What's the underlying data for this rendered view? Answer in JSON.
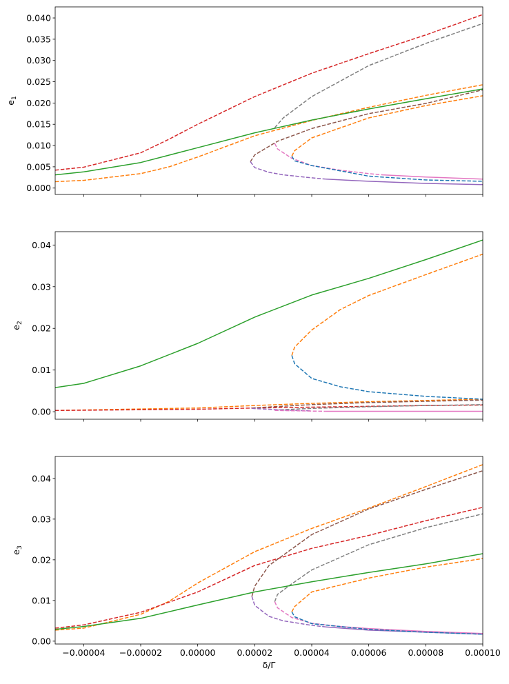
{
  "chart_data": [
    {
      "type": "line",
      "ylabel": "e",
      "ylabel_sub": "1",
      "xlim": [
        -5e-05,
        0.0001
      ],
      "ylim": [
        -0.0015,
        0.0426
      ],
      "yticks": [
        "0.000",
        "0.005",
        "0.010",
        "0.015",
        "0.020",
        "0.025",
        "0.030",
        "0.035",
        "0.040"
      ],
      "ytick_values": [
        0,
        0.005,
        0.01,
        0.015,
        0.02,
        0.025,
        0.03,
        0.035,
        0.04
      ],
      "series": [
        {
          "color": "#d62728",
          "style": "dashed",
          "x": [
            -5e-05,
            -4e-05,
            -2e-05,
            -1e-05,
            0,
            2e-05,
            4e-05,
            6e-05,
            8e-05,
            0.0001
          ],
          "y": [
            0.0042,
            0.0049,
            0.0083,
            0.0115,
            0.015,
            0.0215,
            0.027,
            0.0316,
            0.036,
            0.0408
          ]
        },
        {
          "color": "#ff7f0e",
          "style": "dashed",
          "x": [
            -5e-05,
            -4e-05,
            -2e-05,
            -1e-05,
            0,
            2e-05,
            4e-05,
            6e-05,
            8e-05,
            0.0001
          ],
          "y": [
            0.0015,
            0.0018,
            0.0034,
            0.005,
            0.0073,
            0.0123,
            0.0159,
            0.019,
            0.0218,
            0.0243
          ]
        },
        {
          "color": "#7f7f7f",
          "style": "dashed",
          "x": [
            2.7e-05,
            3e-05,
            4e-05,
            6e-05,
            8e-05,
            0.0001
          ],
          "y": [
            0.0142,
            0.0165,
            0.0215,
            0.0288,
            0.034,
            0.0387
          ]
        },
        {
          "color": "#8c564b",
          "style": "dashed",
          "x": [
            1.85e-05,
            2e-05,
            2.8e-05,
            4e-05,
            6e-05,
            8e-05,
            0.0001
          ],
          "y": [
            0.0062,
            0.0078,
            0.011,
            0.014,
            0.0175,
            0.0199,
            0.0231
          ]
        },
        {
          "color": "#9467bd",
          "style": "dashed",
          "x": [
            1.85e-05,
            2e-05,
            2.5e-05,
            3e-05,
            4e-05,
            4.5e-05
          ],
          "y": [
            0.0062,
            0.0048,
            0.0037,
            0.0031,
            0.0024,
            0.0021
          ]
        },
        {
          "color": "#9467bd",
          "style": "solid",
          "x": [
            4.5e-05,
            6e-05,
            8e-05,
            0.0001
          ],
          "y": [
            0.0021,
            0.0016,
            0.0011,
            0.0008
          ]
        },
        {
          "color": "#e377c2",
          "style": "dashed",
          "x": [
            2.7e-05,
            2.8e-05,
            3.3e-05,
            4e-05,
            5e-05,
            6e-05,
            6.5e-05
          ],
          "y": [
            0.0105,
            0.0092,
            0.007,
            0.0053,
            0.0042,
            0.0034,
            0.0031
          ]
        },
        {
          "color": "#e377c2",
          "style": "solid",
          "x": [
            6.5e-05,
            8e-05,
            0.0001
          ],
          "y": [
            0.0031,
            0.0026,
            0.0021
          ]
        },
        {
          "color": "#ff7f0e",
          "style": "dashed",
          "x": [
            3.3e-05,
            3.4e-05,
            4e-05,
            6e-05,
            8e-05,
            0.0001
          ],
          "y": [
            0.0075,
            0.0088,
            0.0118,
            0.0165,
            0.0194,
            0.0217
          ]
        },
        {
          "color": "#1f77b4",
          "style": "dashed",
          "x": [
            3.3e-05,
            3.4e-05,
            4e-05,
            6e-05,
            8e-05,
            0.0001
          ],
          "y": [
            0.0075,
            0.0064,
            0.0053,
            0.0028,
            0.0019,
            0.0016
          ]
        },
        {
          "color": "#2ca02c",
          "style": "solid",
          "x": [
            -5e-05,
            -4e-05,
            -2e-05,
            0,
            2e-05,
            4e-05,
            6e-05,
            8e-05,
            0.0001
          ],
          "y": [
            0.0031,
            0.0038,
            0.006,
            0.0095,
            0.013,
            0.016,
            0.0186,
            0.021,
            0.0233
          ]
        }
      ]
    },
    {
      "type": "line",
      "ylabel": "e",
      "ylabel_sub": "2",
      "xlim": [
        -5e-05,
        0.0001
      ],
      "ylim": [
        -0.0018,
        0.0432
      ],
      "yticks": [
        "0.00",
        "0.01",
        "0.02",
        "0.03",
        "0.04"
      ],
      "ytick_values": [
        0,
        0.01,
        0.02,
        0.03,
        0.04
      ],
      "series": [
        {
          "color": "#ff7f0e",
          "style": "dashed",
          "x": [
            -5e-05,
            0,
            2e-05,
            4e-05,
            6e-05,
            8e-05,
            0.0001
          ],
          "y": [
            0.0003,
            0.0009,
            0.0015,
            0.002,
            0.0024,
            0.0027,
            0.003
          ]
        },
        {
          "color": "#d62728",
          "style": "dashed",
          "x": [
            -5e-05,
            0,
            2e-05,
            4e-05,
            6e-05,
            8e-05,
            0.0001
          ],
          "y": [
            0.0003,
            0.0006,
            0.0009,
            0.0011,
            0.0013,
            0.0015,
            0.0016
          ]
        },
        {
          "color": "#8c564b",
          "style": "dashed",
          "x": [
            1.9e-05,
            4e-05,
            6e-05,
            8e-05,
            0.0001
          ],
          "y": [
            0.0009,
            0.0017,
            0.0022,
            0.0025,
            0.0028
          ]
        },
        {
          "color": "#7f7f7f",
          "style": "dashed",
          "x": [
            2.7e-05,
            4e-05,
            6e-05,
            8e-05,
            0.0001
          ],
          "y": [
            0.0004,
            0.0008,
            0.0012,
            0.0015,
            0.0017
          ]
        },
        {
          "color": "#9467bd",
          "style": "dashed",
          "x": [
            1.9e-05,
            3e-05,
            4e-05
          ],
          "y": [
            0.0008,
            0.0004,
            0.0002
          ]
        },
        {
          "color": "#e377c2",
          "style": "dashed",
          "x": [
            2.7e-05,
            4.5e-05
          ],
          "y": [
            0.0003,
            0.0001
          ]
        },
        {
          "color": "#e377c2",
          "style": "solid",
          "x": [
            4.5e-05,
            0.0001
          ],
          "y": [
            0.0001,
            0.0001
          ]
        },
        {
          "color": "#ff7f0e",
          "style": "dashed",
          "x": [
            3.3e-05,
            3.4e-05,
            4e-05,
            5e-05,
            6e-05,
            8e-05,
            0.0001
          ],
          "y": [
            0.0135,
            0.0155,
            0.0196,
            0.0245,
            0.0279,
            0.0329,
            0.0378
          ]
        },
        {
          "color": "#1f77b4",
          "style": "dashed",
          "x": [
            3.3e-05,
            3.4e-05,
            4e-05,
            5e-05,
            6e-05,
            8e-05,
            0.0001
          ],
          "y": [
            0.0135,
            0.0115,
            0.008,
            0.006,
            0.0048,
            0.0037,
            0.003
          ]
        },
        {
          "color": "#2ca02c",
          "style": "solid",
          "x": [
            -5e-05,
            -4e-05,
            -2e-05,
            0,
            2e-05,
            4e-05,
            6e-05,
            8e-05,
            0.0001
          ],
          "y": [
            0.0058,
            0.0068,
            0.011,
            0.0164,
            0.0227,
            0.028,
            0.032,
            0.0365,
            0.0412
          ]
        }
      ]
    },
    {
      "type": "line",
      "ylabel": "e",
      "ylabel_sub": "3",
      "xlabel": "δ/Γ",
      "xlim": [
        -5e-05,
        0.0001
      ],
      "ylim": [
        -0.0007,
        0.0454
      ],
      "xticks": [
        "−0.00004",
        "−0.00002",
        "0.00000",
        "0.00002",
        "0.00004",
        "0.00006",
        "0.00008",
        "0.00010"
      ],
      "xtick_values": [
        -4e-05,
        -2e-05,
        0,
        2e-05,
        4e-05,
        6e-05,
        8e-05,
        0.0001
      ],
      "yticks": [
        "0.00",
        "0.01",
        "0.02",
        "0.03",
        "0.04"
      ],
      "ytick_values": [
        0,
        0.01,
        0.02,
        0.03,
        0.04
      ],
      "series": [
        {
          "color": "#ff7f0e",
          "style": "dashed",
          "x": [
            -5e-05,
            -4e-05,
            -2e-05,
            -1e-05,
            0,
            2e-05,
            4e-05,
            6e-05,
            8e-05,
            0.0001
          ],
          "y": [
            0.0027,
            0.0032,
            0.0066,
            0.0098,
            0.0143,
            0.022,
            0.0277,
            0.0327,
            0.038,
            0.0434
          ]
        },
        {
          "color": "#d62728",
          "style": "dashed",
          "x": [
            -5e-05,
            -4e-05,
            -2e-05,
            0,
            2e-05,
            4e-05,
            6e-05,
            8e-05,
            0.0001
          ],
          "y": [
            0.0032,
            0.004,
            0.0071,
            0.0121,
            0.0186,
            0.0228,
            0.026,
            0.0296,
            0.0329
          ]
        },
        {
          "color": "#8c564b",
          "style": "dashed",
          "x": [
            1.9e-05,
            2e-05,
            2.5e-05,
            4e-05,
            6e-05,
            8e-05,
            0.0001
          ],
          "y": [
            0.011,
            0.0135,
            0.0186,
            0.0262,
            0.0325,
            0.0373,
            0.0419
          ]
        },
        {
          "color": "#9467bd",
          "style": "dashed",
          "x": [
            1.9e-05,
            2e-05,
            2.5e-05,
            3e-05,
            4e-05,
            4.5e-05
          ],
          "y": [
            0.011,
            0.0088,
            0.0061,
            0.005,
            0.0039,
            0.0035
          ]
        },
        {
          "color": "#9467bd",
          "style": "solid",
          "x": [
            4.5e-05,
            6e-05,
            8e-05,
            0.0001
          ],
          "y": [
            0.0035,
            0.0027,
            0.0022,
            0.0017
          ]
        },
        {
          "color": "#7f7f7f",
          "style": "dashed",
          "x": [
            2.7e-05,
            2.8e-05,
            3.3e-05,
            4e-05,
            6e-05,
            8e-05,
            0.0001
          ],
          "y": [
            0.0097,
            0.0115,
            0.0141,
            0.0175,
            0.0237,
            0.0279,
            0.0313
          ]
        },
        {
          "color": "#e377c2",
          "style": "dashed",
          "x": [
            2.7e-05,
            2.8e-05,
            3.3e-05,
            4e-05,
            5e-05
          ],
          "y": [
            0.0097,
            0.0082,
            0.0058,
            0.0044,
            0.0036
          ]
        },
        {
          "color": "#e377c2",
          "style": "solid",
          "x": [
            5e-05,
            6e-05,
            8e-05,
            0.0001
          ],
          "y": [
            0.0036,
            0.0031,
            0.0024,
            0.0019
          ]
        },
        {
          "color": "#ff7f0e",
          "style": "dashed",
          "x": [
            3.3e-05,
            3.4e-05,
            4e-05,
            6e-05,
            8e-05,
            0.0001
          ],
          "y": [
            0.0072,
            0.0085,
            0.0121,
            0.0155,
            0.0182,
            0.0203
          ]
        },
        {
          "color": "#1f77b4",
          "style": "dashed",
          "x": [
            3.3e-05,
            3.4e-05,
            4e-05,
            6e-05,
            8e-05,
            0.0001
          ],
          "y": [
            0.0072,
            0.006,
            0.0043,
            0.0029,
            0.0022,
            0.0017
          ]
        },
        {
          "color": "#2ca02c",
          "style": "solid",
          "x": [
            -5e-05,
            -4e-05,
            -2e-05,
            0,
            2e-05,
            4e-05,
            6e-05,
            8e-05,
            0.0001
          ],
          "y": [
            0.0029,
            0.0036,
            0.0056,
            0.0089,
            0.0121,
            0.0146,
            0.0169,
            0.019,
            0.0215
          ]
        }
      ]
    }
  ]
}
